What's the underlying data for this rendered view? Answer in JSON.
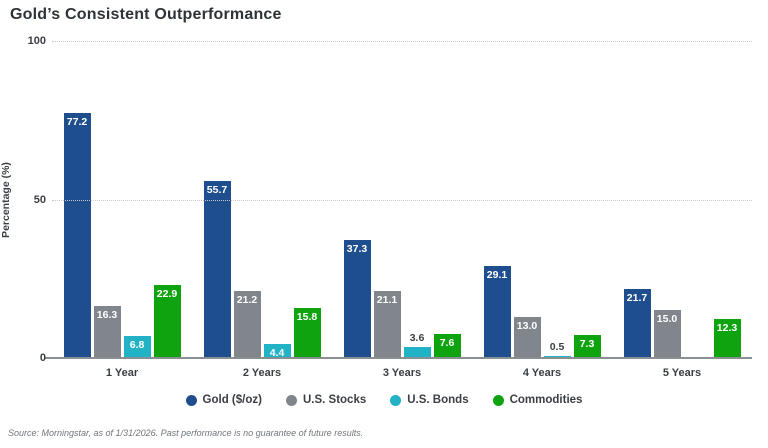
{
  "title": "Gold’s Consistent Outperformance",
  "source_note": "Source: Morningstar, as of 1/31/2026. Past performance is no guarantee of future results.",
  "chart_data": {
    "type": "bar",
    "title": "Gold’s Consistent Outperformance",
    "categories": [
      "1 Year",
      "2 Years",
      "3 Years",
      "4 Years",
      "5 Years"
    ],
    "series": [
      {
        "name": "Gold ($/oz)",
        "color": "#1F4E8F",
        "values": [
          77.2,
          55.7,
          37.3,
          29.1,
          21.7
        ]
      },
      {
        "name": "U.S. Stocks",
        "color": "#80868C",
        "values": [
          16.3,
          21.2,
          21.1,
          13.0,
          15.0
        ]
      },
      {
        "name": "U.S. Bonds",
        "color": "#22B2C5",
        "values": [
          6.8,
          4.4,
          3.6,
          0.5,
          null
        ]
      },
      {
        "name": "Commodities",
        "color": "#10A310",
        "values": [
          22.9,
          15.8,
          7.6,
          7.3,
          12.3
        ]
      }
    ],
    "xlabel": "",
    "ylabel": "Percentage (%)",
    "ylim": [
      0,
      100
    ],
    "yticks": [
      0,
      50,
      100
    ],
    "grid": "horizontal dotted gridlines at 50 and 100, solid baseline at 0",
    "legend_position": "bottom",
    "bar_label_decimals": 1,
    "bar_label_placement": "inside bar top when value >= 4, above bar otherwise"
  },
  "colors": {
    "title_text": "#2E3338",
    "axis_text": "#3A3E43",
    "gridline": "#c9c9c9",
    "baseline": "#8A8F94",
    "source_text": "#70757B",
    "background": "#ffffff"
  }
}
